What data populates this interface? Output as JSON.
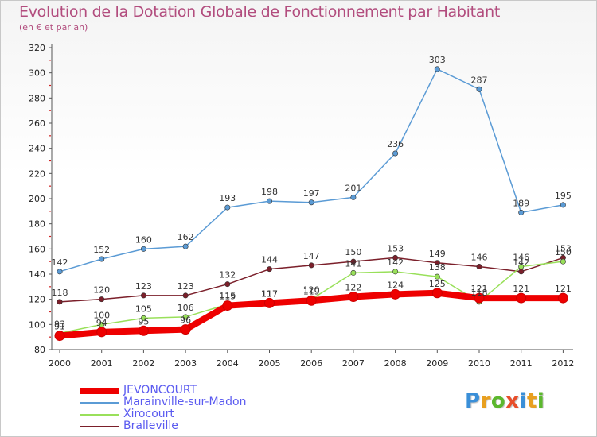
{
  "title": "Evolution de la Dotation Globale de Fonctionnement par Habitant",
  "subtitle": "(en € et par an)",
  "logo": {
    "letters": [
      "P",
      "r",
      "o",
      "x",
      "i",
      "t",
      "i"
    ],
    "colors": [
      "#3a8fd8",
      "#e8a020",
      "#5cb82e",
      "#e84e2a",
      "#3a8fd8",
      "#e8a020",
      "#5cb82e"
    ]
  },
  "chart_data": {
    "type": "line",
    "title": "Evolution de la Dotation Globale de Fonctionnement par Habitant",
    "subtitle": "(en € et par an)",
    "xlabel": "",
    "ylabel": "",
    "ylim": [
      80,
      320
    ],
    "yticks": [
      80,
      100,
      120,
      140,
      160,
      180,
      200,
      220,
      240,
      260,
      280,
      300,
      320
    ],
    "categories": [
      "2000",
      "2001",
      "2002",
      "2003",
      "2004",
      "2005",
      "2006",
      "2007",
      "2008",
      "2009",
      "2010",
      "2011",
      "2012"
    ],
    "grid": false,
    "legend_position": "bottom-left",
    "series": [
      {
        "name": "Marainville-sur-Madon",
        "color": "#5b9bd5",
        "values": [
          142,
          152,
          160,
          162,
          193,
          198,
          197,
          201,
          236,
          303,
          287,
          189,
          195
        ],
        "labels": [
          "142",
          "152",
          "160",
          "162",
          "193",
          "198",
          "197",
          "201",
          "236",
          "303",
          "287",
          "189",
          "195"
        ]
      },
      {
        "name": "Bralleville",
        "color": "#7b1f2a",
        "values": [
          118,
          120,
          123,
          123,
          132,
          144,
          147,
          150,
          153,
          149,
          146,
          142,
          153
        ],
        "labels": [
          "118",
          "120",
          "123",
          "123",
          "132",
          "144",
          "147",
          "150",
          "153",
          "149",
          "146",
          "142",
          "153"
        ]
      },
      {
        "name": "Xirocourt",
        "color": "#99e05a",
        "values": [
          93,
          100,
          105,
          106,
          116,
          117,
          120,
          141,
          142,
          138,
          118,
          146,
          150
        ],
        "labels": [
          "93",
          "100",
          "105",
          "106",
          "116",
          "117",
          "120",
          "141",
          "142",
          "138",
          "118",
          "146",
          "150"
        ]
      },
      {
        "name": "JEVONCOURT",
        "color": "#ee0000",
        "values": [
          91,
          94,
          95,
          96,
          115,
          117,
          119,
          122,
          124,
          125,
          121,
          121,
          121
        ],
        "labels": [
          "91",
          "94",
          "95",
          "96",
          "115",
          "117",
          "119",
          "122",
          "124",
          "125",
          "121",
          "121",
          "121"
        ]
      }
    ],
    "legend": [
      "JEVONCOURT",
      "Marainville-sur-Madon",
      "Xirocourt",
      "Bralleville"
    ]
  }
}
